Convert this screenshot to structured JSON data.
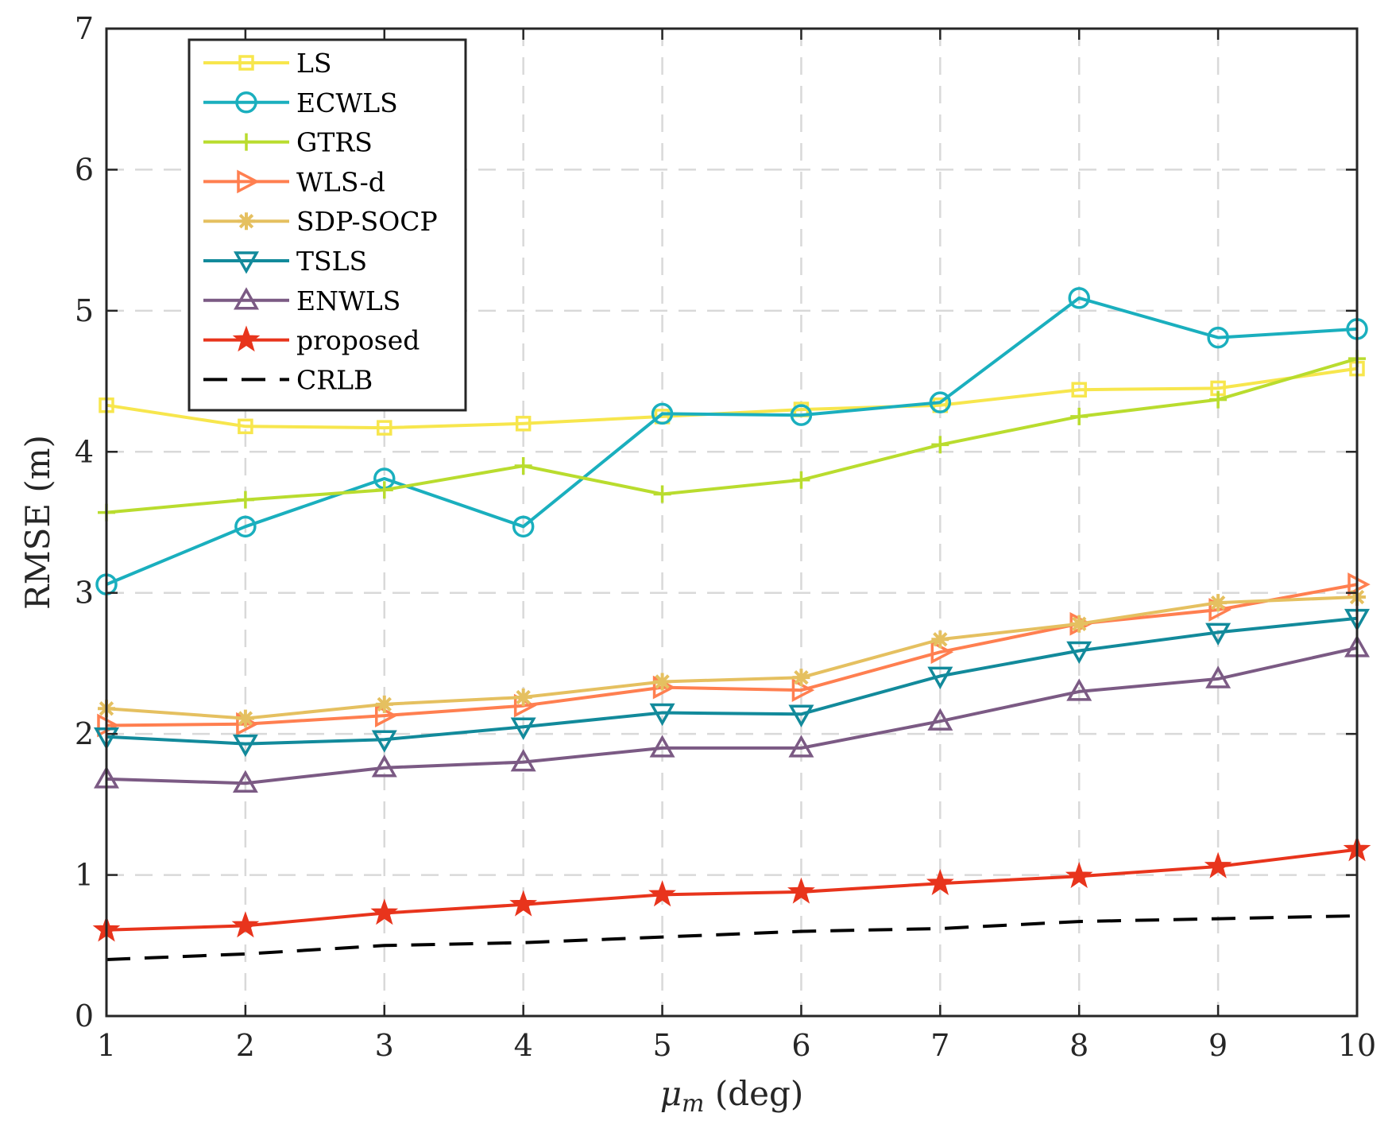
{
  "chart_data": {
    "type": "line",
    "title": "",
    "xlabel_symbol": "μ",
    "xlabel_subscript": "m",
    "xlabel_unit": " (deg)",
    "ylabel": "RMSE (m)",
    "xlim": [
      1,
      10
    ],
    "ylim": [
      0,
      7
    ],
    "xticks": [
      "1",
      "2",
      "3",
      "4",
      "5",
      "6",
      "7",
      "8",
      "9",
      "10"
    ],
    "yticks": [
      "0",
      "1",
      "2",
      "3",
      "4",
      "5",
      "6",
      "7"
    ],
    "grid": true,
    "legend_position": "top-left",
    "x": [
      1,
      2,
      3,
      4,
      5,
      6,
      7,
      8,
      9,
      10
    ],
    "series": [
      {
        "name": "LS",
        "color": "#f7e64d",
        "marker": "square",
        "dash": "solid",
        "values": [
          4.33,
          4.18,
          4.17,
          4.2,
          4.25,
          4.3,
          4.33,
          4.44,
          4.45,
          4.59
        ]
      },
      {
        "name": "ECWLS",
        "color": "#1aafbe",
        "marker": "circle",
        "dash": "solid",
        "values": [
          3.06,
          3.47,
          3.81,
          3.47,
          4.27,
          4.26,
          4.35,
          5.09,
          4.81,
          4.87
        ]
      },
      {
        "name": "GTRS",
        "color": "#b9dc2e",
        "marker": "plus",
        "dash": "solid",
        "values": [
          3.57,
          3.66,
          3.73,
          3.9,
          3.7,
          3.8,
          4.05,
          4.25,
          4.37,
          4.66
        ]
      },
      {
        "name": "WLS-d",
        "color": "#ff7f50",
        "marker": "triangle-right",
        "dash": "solid",
        "values": [
          2.06,
          2.07,
          2.13,
          2.2,
          2.33,
          2.31,
          2.58,
          2.78,
          2.88,
          3.06
        ]
      },
      {
        "name": "SDP-SOCP",
        "color": "#e5c060",
        "marker": "asterisk",
        "dash": "solid",
        "values": [
          2.18,
          2.11,
          2.21,
          2.26,
          2.37,
          2.4,
          2.67,
          2.78,
          2.93,
          2.97
        ]
      },
      {
        "name": "TSLS",
        "color": "#128a9b",
        "marker": "triangle-down",
        "dash": "solid",
        "values": [
          1.98,
          1.93,
          1.96,
          2.05,
          2.15,
          2.14,
          2.41,
          2.59,
          2.72,
          2.82
        ]
      },
      {
        "name": "ENWLS",
        "color": "#7b5a84",
        "marker": "triangle-up",
        "dash": "solid",
        "values": [
          1.68,
          1.65,
          1.76,
          1.8,
          1.9,
          1.9,
          2.09,
          2.3,
          2.39,
          2.61
        ]
      },
      {
        "name": "proposed",
        "color": "#e8341c",
        "marker": "star",
        "dash": "solid",
        "values": [
          0.61,
          0.64,
          0.73,
          0.79,
          0.86,
          0.88,
          0.94,
          0.99,
          1.06,
          1.18
        ]
      },
      {
        "name": "CRLB",
        "color": "#000000",
        "marker": "none",
        "dash": "dashed",
        "values": [
          0.4,
          0.44,
          0.5,
          0.52,
          0.56,
          0.6,
          0.62,
          0.67,
          0.69,
          0.71
        ]
      }
    ]
  }
}
